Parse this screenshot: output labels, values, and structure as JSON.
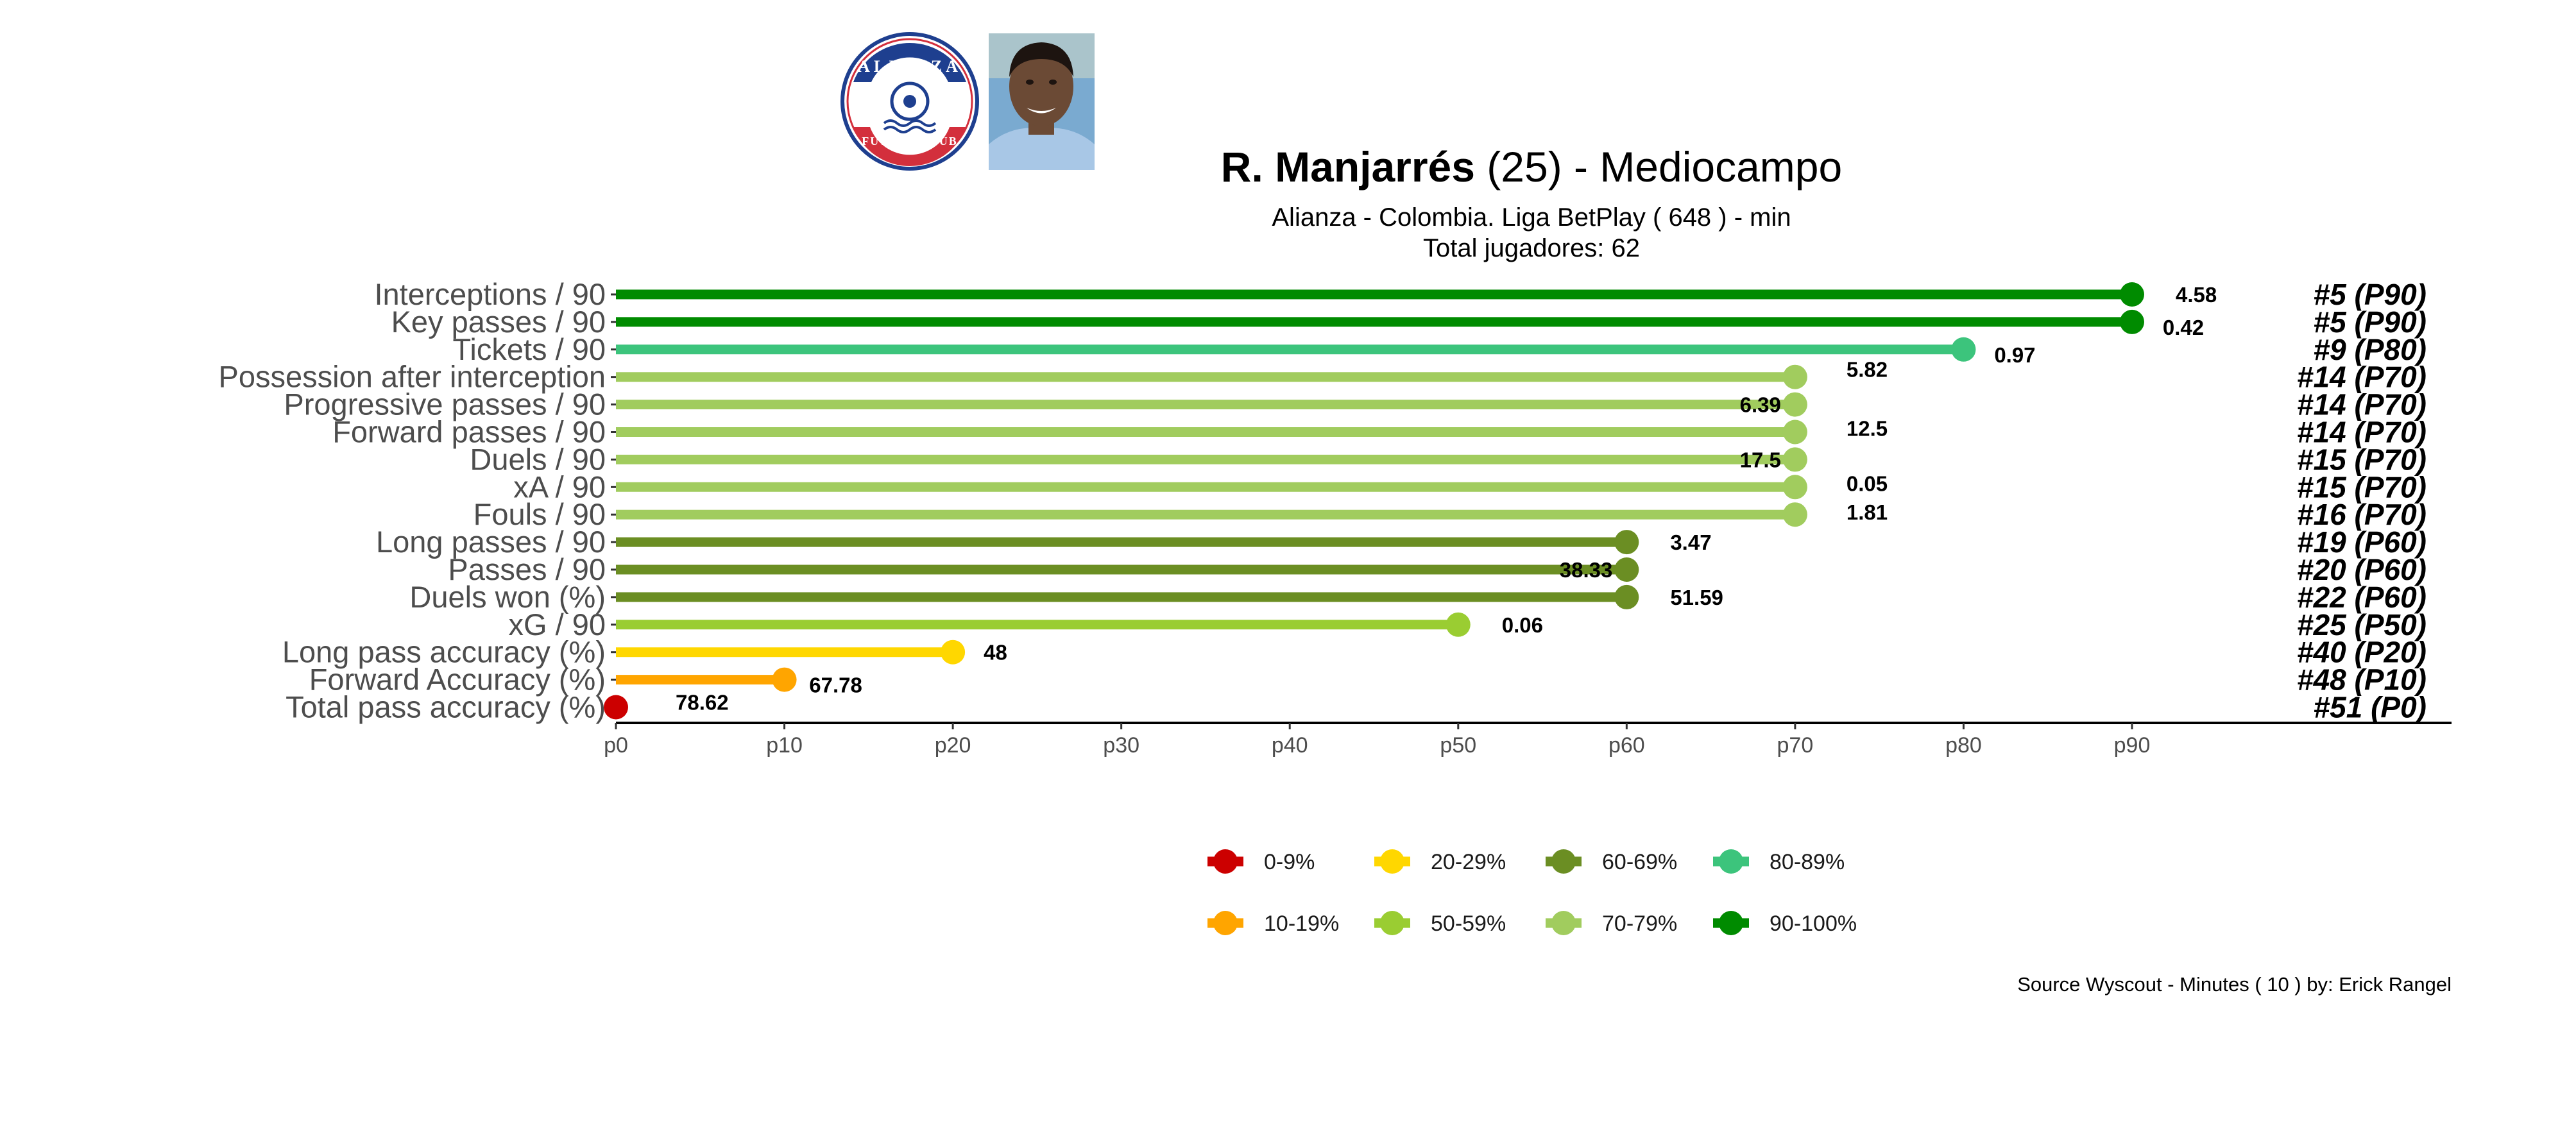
{
  "header": {
    "player_name": "R. Manjarrés",
    "title_rest": " (25) -  Mediocampo",
    "subtitle_line1": "Alianza  -  Colombia. Liga BetPlay  ( 648 ) - min",
    "subtitle_line2": "Total jugadores:  62",
    "club_logo": {
      "top_text": "ALIANZA",
      "bottom_text": "FUTBOL CLUB",
      "colors": {
        "blue": "#1e3f8f",
        "red": "#d32f3c"
      }
    },
    "player_photo": {
      "colors": {
        "background": "#7aaad0",
        "skin": "#6b4a35",
        "hair": "#1d1410",
        "shirt": "#a8c7e6"
      }
    }
  },
  "caption": "Source Wyscout - Minutes ( 10 ) by: Erick Rangel",
  "chart_data": {
    "type": "lollipop",
    "x_axis": {
      "range": [
        0,
        90
      ],
      "ticks": [
        0,
        10,
        20,
        30,
        40,
        50,
        60,
        70,
        80,
        90
      ],
      "tick_labels": [
        "p0",
        "p10",
        "p20",
        "p30",
        "p40",
        "p50",
        "p60",
        "p70",
        "p80",
        "p90"
      ]
    },
    "rows": [
      {
        "metric": "Interceptions / 90",
        "percentile": 90,
        "value": "4.58",
        "rank": "#5 (P90)"
      },
      {
        "metric": "Key passes / 90",
        "percentile": 90,
        "value": "0.42",
        "rank": "#5 (P90)"
      },
      {
        "metric": "Tickets / 90",
        "percentile": 80,
        "value": "0.97",
        "rank": "#9 (P80)"
      },
      {
        "metric": "Possession after interception",
        "percentile": 70,
        "value": "5.82",
        "rank": "#14 (P70)"
      },
      {
        "metric": "Progressive passes / 90",
        "percentile": 70,
        "value": "6.39",
        "rank": "#14 (P70)"
      },
      {
        "metric": "Forward passes / 90",
        "percentile": 70,
        "value": "12.5",
        "rank": "#14 (P70)"
      },
      {
        "metric": "Duels / 90",
        "percentile": 70,
        "value": "17.5",
        "rank": "#15 (P70)"
      },
      {
        "metric": "xA / 90",
        "percentile": 70,
        "value": "0.05",
        "rank": "#15 (P70)"
      },
      {
        "metric": "Fouls / 90",
        "percentile": 70,
        "value": "1.81",
        "rank": "#16 (P70)"
      },
      {
        "metric": "Long passes / 90",
        "percentile": 60,
        "value": "3.47",
        "rank": "#19 (P60)"
      },
      {
        "metric": "Passes / 90",
        "percentile": 60,
        "value": "38.33",
        "rank": "#20 (P60)"
      },
      {
        "metric": "Duels won (%)",
        "percentile": 60,
        "value": "51.59",
        "rank": "#22 (P60)"
      },
      {
        "metric": "xG / 90",
        "percentile": 50,
        "value": "0.06",
        "rank": "#25 (P50)"
      },
      {
        "metric": "Long pass accuracy (%)",
        "percentile": 20,
        "value": "48",
        "rank": "#40 (P20)"
      },
      {
        "metric": "Forward Accuracy (%)",
        "percentile": 10,
        "value": "67.78",
        "rank": "#48 (P10)"
      },
      {
        "metric": "Total pass accuracy (%)",
        "percentile": 0,
        "value": "78.62",
        "rank": "#51 (P0)"
      }
    ],
    "legend": [
      {
        "label": "0-9%",
        "color": "#cc0000"
      },
      {
        "label": "10-19%",
        "color": "#ffa500"
      },
      {
        "label": "20-29%",
        "color": "#ffd700"
      },
      {
        "label": "50-59%",
        "color": "#9acd32"
      },
      {
        "label": "60-69%",
        "color": "#6b8e23"
      },
      {
        "label": "70-79%",
        "color": "#a1cc5e"
      },
      {
        "label": "80-89%",
        "color": "#3cc47c"
      },
      {
        "label": "90-100%",
        "color": "#008b00"
      }
    ],
    "legend_position": "bottom"
  }
}
